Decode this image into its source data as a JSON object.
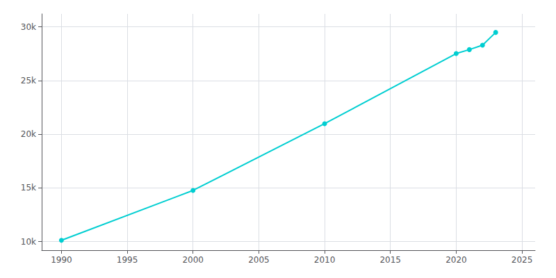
{
  "chart_data": {
    "type": "line",
    "x": [
      1990,
      2000,
      2010,
      2020,
      2021,
      2022,
      2023
    ],
    "values": [
      10125,
      14766,
      20978,
      27511,
      27875,
      28287,
      29477
    ],
    "color": "#00CED1",
    "marker": "circle",
    "xlim": [
      1988.5,
      2026
    ],
    "ylim": [
      9200,
      31200
    ],
    "xticks": [
      1990,
      1995,
      2000,
      2005,
      2010,
      2015,
      2020,
      2025
    ],
    "yticks": [
      {
        "value": 10000,
        "label": "10k"
      },
      {
        "value": 15000,
        "label": "15k"
      },
      {
        "value": 20000,
        "label": "20k"
      },
      {
        "value": 25000,
        "label": "25k"
      },
      {
        "value": 30000,
        "label": "30k"
      }
    ],
    "grid": true
  }
}
